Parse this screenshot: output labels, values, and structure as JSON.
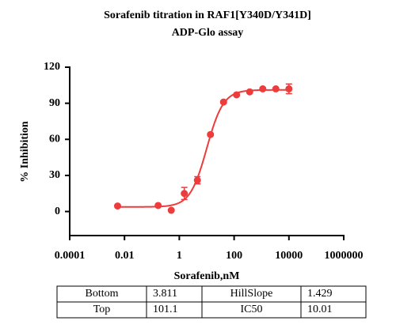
{
  "chart_data": {
    "type": "scatter",
    "title": "Sorafenib titration in RAF1[Y340D/Y341D]",
    "subtitle": "ADP-Glo assay",
    "xlabel": "Sorafenib,nM",
    "ylabel": "% Inhibition",
    "xscale": "log",
    "xlim": [
      0.0001,
      1000000
    ],
    "xticks": [
      0.0001,
      0.01,
      1,
      100,
      10000,
      1000000
    ],
    "ylim": [
      -20,
      120
    ],
    "yticks": [
      0,
      30,
      60,
      90,
      120
    ],
    "grid": false,
    "series": [
      {
        "color": "#ee3b3b",
        "x": [
          0.0056,
          0.169,
          0.508,
          1.52,
          4.57,
          13.7,
          41.2,
          123,
          370,
          1111,
          3333,
          10000
        ],
        "values": [
          4.6,
          5,
          1,
          15,
          26,
          64,
          91,
          97,
          99.5,
          102,
          102,
          102
        ],
        "errors": [
          0,
          0,
          0,
          5,
          3,
          1,
          1,
          1,
          1,
          1,
          1,
          4
        ]
      }
    ]
  },
  "table": {
    "rows": [
      [
        "Bottom",
        3.811,
        "HillSlope",
        1.429
      ],
      [
        "Top",
        101.1,
        "IC50",
        10.01
      ]
    ]
  }
}
